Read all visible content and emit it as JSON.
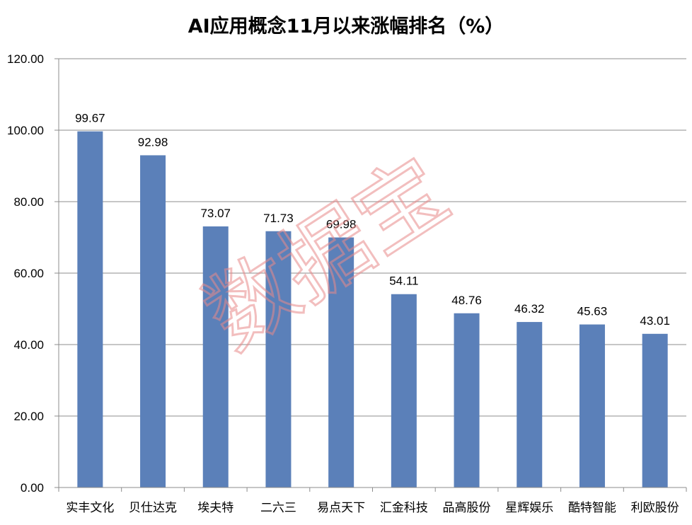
{
  "chart_data": {
    "type": "bar",
    "title": "AI应用概念11月以来涨幅排名（%）",
    "categories": [
      "实丰文化",
      "贝仕达克",
      "埃夫特",
      "二六三",
      "易点天下",
      "汇金科技",
      "品高股份",
      "星辉娱乐",
      "酷特智能",
      "利欧股份"
    ],
    "values": [
      99.67,
      92.98,
      73.07,
      71.73,
      69.98,
      54.11,
      48.76,
      46.32,
      45.63,
      43.01
    ],
    "data_labels": [
      "99.67",
      "92.98",
      "73.07",
      "71.73",
      "69.98",
      "54.11",
      "48.76",
      "46.32",
      "45.63",
      "43.01"
    ],
    "ylim": [
      0,
      120
    ],
    "yticks": [
      "0.00",
      "20.00",
      "40.00",
      "60.00",
      "80.00",
      "100.00",
      "120.00"
    ],
    "grid": true,
    "legend": "none",
    "bar_color": "#5b80b9",
    "watermark": "数据宝",
    "watermark_color": "#e88a8a"
  }
}
